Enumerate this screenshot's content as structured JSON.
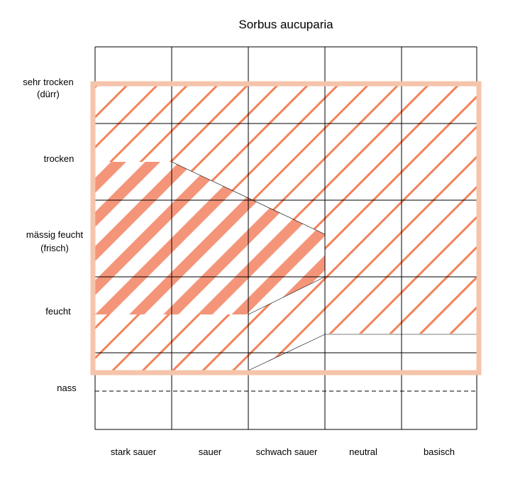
{
  "title": "Sorbus aucuparia",
  "moisture_labels": {
    "sehr_trocken_line1": "sehr trocken",
    "sehr_trocken_line2": "(dürr)",
    "trocken": "trocken",
    "maessig_feucht_line1": "mässig feucht",
    "maessig_feucht_line2": "(frisch)",
    "feucht": "feucht",
    "nass": "nass"
  },
  "ph_labels": [
    "stark sauer",
    "sauer",
    "schwach sauer",
    "neutral",
    "basisch"
  ],
  "colors": {
    "hatch": "#f4825a",
    "hatch_dense": "#f4957a",
    "frame": "#f5c4aa",
    "grid": "#000000"
  },
  "zones": {
    "range": "light diagonal hatching",
    "optimum": "dense diagonal hatching"
  }
}
